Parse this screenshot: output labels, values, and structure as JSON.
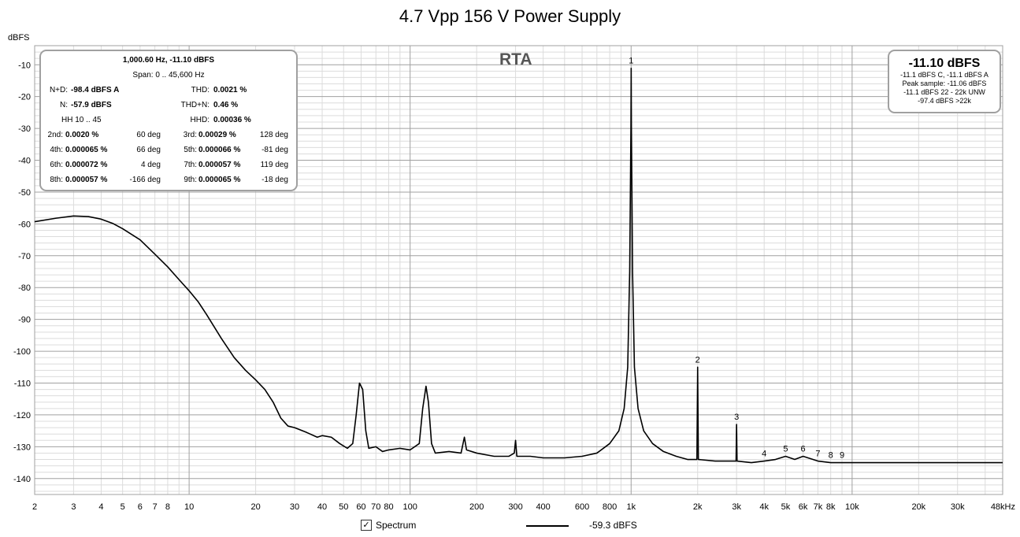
{
  "title": "4.7 Vpp 156 V Power Supply",
  "ylabel_text": "dBFS",
  "rta_label": "RTA",
  "stats": {
    "r1": "1,000.60 Hz, -11.10 dBFS",
    "r2": "Span: 0 .. 45,600 Hz",
    "nd_label": "N+D:",
    "nd_value": "-98.4 dBFS A",
    "thd_label": "THD:",
    "thd_value": "0.0021 %",
    "n_label": "N:",
    "n_value": "-57.9 dBFS",
    "thdn_label": "THD+N:",
    "thdn_value": "0.46 %",
    "hh_text": "HH 10 .. 45",
    "hhd_label": "HHD:",
    "hhd_value": "0.00036 %",
    "harmonics": [
      {
        "l1": "2nd:",
        "v1": "0.0020 %",
        "d1": "60 deg",
        "l2": "3rd:",
        "v2": "0.00029 %",
        "d2": "128 deg"
      },
      {
        "l1": "4th:",
        "v1": "0.000065 %",
        "d1": "66 deg",
        "l2": "5th:",
        "v2": "0.000066 %",
        "d2": "-81 deg"
      },
      {
        "l1": "6th:",
        "v1": "0.000072 %",
        "d1": "4 deg",
        "l2": "7th:",
        "v2": "0.000057 %",
        "d2": "119 deg"
      },
      {
        "l1": "8th:",
        "v1": "0.000057 %",
        "d1": "-166 deg",
        "l2": "9th:",
        "v2": "0.000065 %",
        "d2": "-18 deg"
      }
    ]
  },
  "level": {
    "big": "-11.10 dBFS",
    "l1": "-11.1 dBFS C, -11.1 dBFS A",
    "l2": "Peak sample: -11.06 dBFS",
    "l3": "-11.1 dBFS 22 - 22k UNW",
    "l4": "-97.4 dBFS >22k"
  },
  "legend": {
    "checkbox_checked": true,
    "label": "Spectrum",
    "value": "-59.3 dBFS"
  },
  "colors": {
    "line": "#000000",
    "grid_major": "#a0a0a0",
    "grid_minor": "#dcdcdc",
    "border": "#a0a0a0"
  },
  "chart_data": {
    "type": "line",
    "title": "4.7 Vpp 156 V Power Supply",
    "ylabel": "dBFS",
    "x_scale": "log",
    "xlim": [
      2,
      48000
    ],
    "ylim": [
      -145,
      -4
    ],
    "grid": true,
    "x_ticks": [
      {
        "v": 2,
        "t": "2"
      },
      {
        "v": 3,
        "t": "3"
      },
      {
        "v": 4,
        "t": "4"
      },
      {
        "v": 5,
        "t": "5"
      },
      {
        "v": 6,
        "t": "6"
      },
      {
        "v": 7,
        "t": "7"
      },
      {
        "v": 8,
        "t": "8"
      },
      {
        "v": 10,
        "t": "10"
      },
      {
        "v": 20,
        "t": "20"
      },
      {
        "v": 30,
        "t": "30"
      },
      {
        "v": 40,
        "t": "40"
      },
      {
        "v": 50,
        "t": "50"
      },
      {
        "v": 60,
        "t": "60"
      },
      {
        "v": 70,
        "t": "70"
      },
      {
        "v": 80,
        "t": "80"
      },
      {
        "v": 100,
        "t": "100"
      },
      {
        "v": 200,
        "t": "200"
      },
      {
        "v": 300,
        "t": "300"
      },
      {
        "v": 400,
        "t": "400"
      },
      {
        "v": 600,
        "t": "600"
      },
      {
        "v": 800,
        "t": "800"
      },
      {
        "v": 1000,
        "t": "1k"
      },
      {
        "v": 2000,
        "t": "2k"
      },
      {
        "v": 3000,
        "t": "3k"
      },
      {
        "v": 4000,
        "t": "4k"
      },
      {
        "v": 5000,
        "t": "5k"
      },
      {
        "v": 6000,
        "t": "6k"
      },
      {
        "v": 7000,
        "t": "7k"
      },
      {
        "v": 8000,
        "t": "8k"
      },
      {
        "v": 10000,
        "t": "10k"
      },
      {
        "v": 20000,
        "t": "20k"
      },
      {
        "v": 30000,
        "t": "30k"
      },
      {
        "v": 48000,
        "t": "48kHz"
      }
    ],
    "y_ticks": [
      {
        "v": -10,
        "t": "-10"
      },
      {
        "v": -20,
        "t": "-20"
      },
      {
        "v": -30,
        "t": "-30"
      },
      {
        "v": -40,
        "t": "-40"
      },
      {
        "v": -50,
        "t": "-50"
      },
      {
        "v": -60,
        "t": "-60"
      },
      {
        "v": -70,
        "t": "-70"
      },
      {
        "v": -80,
        "t": "-80"
      },
      {
        "v": -90,
        "t": "-90"
      },
      {
        "v": -100,
        "t": "-100"
      },
      {
        "v": -110,
        "t": "-110"
      },
      {
        "v": -120,
        "t": "-120"
      },
      {
        "v": -130,
        "t": "-130"
      },
      {
        "v": -140,
        "t": "-140"
      }
    ],
    "series": [
      {
        "points": [
          [
            2,
            -59.3
          ],
          [
            2.5,
            -58.2
          ],
          [
            3,
            -57.5
          ],
          [
            3.5,
            -57.7
          ],
          [
            4,
            -58.5
          ],
          [
            4.5,
            -59.8
          ],
          [
            5,
            -61.5
          ],
          [
            6,
            -65
          ],
          [
            7,
            -69.5
          ],
          [
            8,
            -73.5
          ],
          [
            9,
            -77.5
          ],
          [
            10,
            -81
          ],
          [
            11,
            -84.5
          ],
          [
            12,
            -88.5
          ],
          [
            14,
            -96
          ],
          [
            16,
            -102
          ],
          [
            18,
            -106
          ],
          [
            20,
            -109
          ],
          [
            22,
            -112
          ],
          [
            24,
            -116
          ],
          [
            26,
            -121
          ],
          [
            28,
            -123.5
          ],
          [
            30,
            -124
          ],
          [
            34,
            -125.5
          ],
          [
            38,
            -127
          ],
          [
            40,
            -126.5
          ],
          [
            44,
            -127
          ],
          [
            48,
            -129
          ],
          [
            52,
            -130.5
          ],
          [
            55,
            -129
          ],
          [
            57,
            -120
          ],
          [
            59,
            -110
          ],
          [
            61,
            -112
          ],
          [
            63,
            -125
          ],
          [
            65,
            -130.5
          ],
          [
            70,
            -130
          ],
          [
            75,
            -131.5
          ],
          [
            80,
            -131
          ],
          [
            90,
            -130.5
          ],
          [
            100,
            -131
          ],
          [
            110,
            -129
          ],
          [
            114,
            -118
          ],
          [
            118,
            -111
          ],
          [
            121,
            -116
          ],
          [
            125,
            -129
          ],
          [
            130,
            -132
          ],
          [
            150,
            -131.5
          ],
          [
            170,
            -132
          ],
          [
            176,
            -127
          ],
          [
            180,
            -131
          ],
          [
            200,
            -132
          ],
          [
            240,
            -133
          ],
          [
            280,
            -133
          ],
          [
            296,
            -132
          ],
          [
            300,
            -128
          ],
          [
            304,
            -133
          ],
          [
            350,
            -133
          ],
          [
            400,
            -133.5
          ],
          [
            500,
            -133.5
          ],
          [
            600,
            -133
          ],
          [
            700,
            -132
          ],
          [
            800,
            -129
          ],
          [
            880,
            -125
          ],
          [
            930,
            -118
          ],
          [
            965,
            -105
          ],
          [
            985,
            -75
          ],
          [
            998,
            -30
          ],
          [
            1000.6,
            -11.1
          ],
          [
            1003,
            -30
          ],
          [
            1015,
            -75
          ],
          [
            1035,
            -105
          ],
          [
            1075,
            -118
          ],
          [
            1140,
            -125
          ],
          [
            1250,
            -129
          ],
          [
            1400,
            -131.5
          ],
          [
            1600,
            -133
          ],
          [
            1800,
            -134
          ],
          [
            1985,
            -134
          ],
          [
            2000,
            -105
          ],
          [
            2015,
            -134
          ],
          [
            2400,
            -134.5
          ],
          [
            2985,
            -134.5
          ],
          [
            3000,
            -123
          ],
          [
            3015,
            -134.5
          ],
          [
            3500,
            -135
          ],
          [
            4000,
            -134.5
          ],
          [
            4500,
            -134
          ],
          [
            5000,
            -133
          ],
          [
            5500,
            -134
          ],
          [
            6000,
            -133
          ],
          [
            7000,
            -134.5
          ],
          [
            8000,
            -135
          ],
          [
            10000,
            -135
          ],
          [
            15000,
            -135
          ],
          [
            20000,
            -135
          ],
          [
            30000,
            -135
          ],
          [
            48000,
            -135
          ]
        ]
      }
    ],
    "harmonic_markers": [
      {
        "label": "1",
        "x": 1000,
        "y": -11.1
      },
      {
        "label": "2",
        "x": 2000,
        "y": -105
      },
      {
        "label": "3",
        "x": 3000,
        "y": -123
      },
      {
        "label": "4",
        "x": 4000,
        "y": -134.5
      },
      {
        "label": "5",
        "x": 5000,
        "y": -133
      },
      {
        "label": "6",
        "x": 6000,
        "y": -133
      },
      {
        "label": "7",
        "x": 7000,
        "y": -134.5
      },
      {
        "label": "8",
        "x": 8000,
        "y": -135
      },
      {
        "label": "9",
        "x": 9000,
        "y": -135
      }
    ]
  }
}
